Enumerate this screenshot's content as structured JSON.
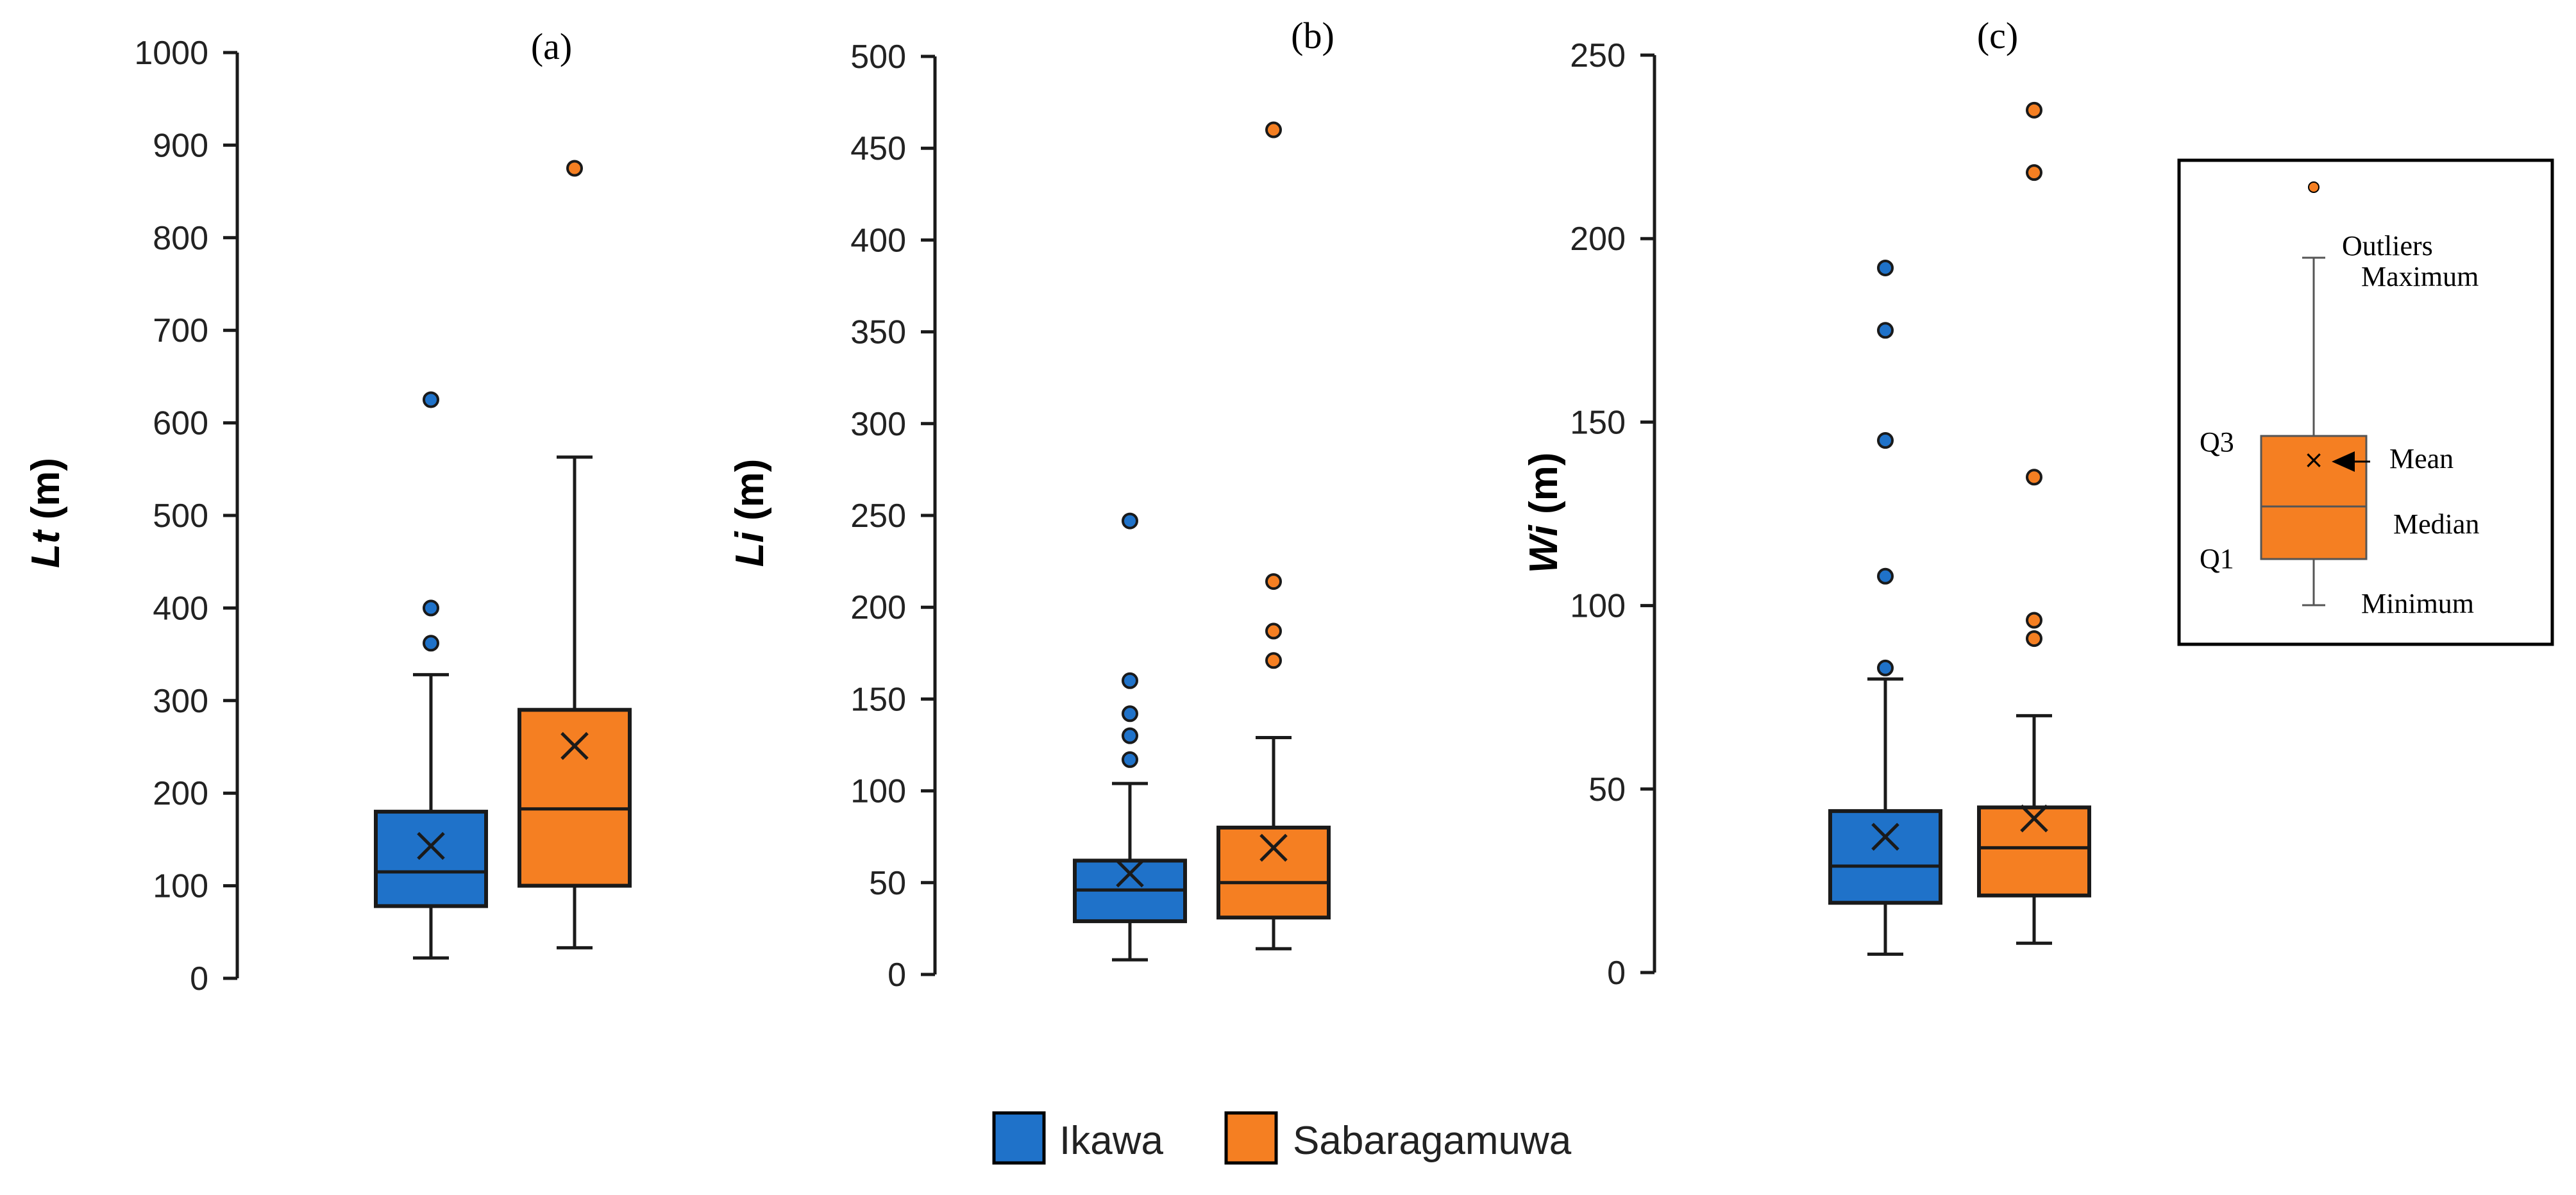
{
  "chart_data": [
    {
      "type": "boxplot",
      "panel_label": "(a)",
      "ylabel_var": "Lt",
      "ylabel_unit": " (m)",
      "ylim": [
        0,
        1000
      ],
      "yticks": [
        0,
        100,
        200,
        300,
        400,
        500,
        600,
        700,
        800,
        900,
        1000
      ],
      "series": [
        {
          "name": "Ikawa",
          "min": 22,
          "q1": 78,
          "median": 115,
          "q3": 180,
          "max": 328,
          "mean": 143,
          "outliers": [
            362,
            400,
            625
          ]
        },
        {
          "name": "Sabaragamuwa",
          "min": 33,
          "q1": 100,
          "median": 183,
          "q3": 290,
          "max": 563,
          "mean": 251,
          "outliers": [
            875
          ]
        }
      ]
    },
    {
      "type": "boxplot",
      "panel_label": "(b)",
      "ylabel_var": "Li",
      "ylabel_unit": " (m)",
      "ylim": [
        0,
        500
      ],
      "yticks": [
        0,
        50,
        100,
        150,
        200,
        250,
        300,
        350,
        400,
        450,
        500
      ],
      "series": [
        {
          "name": "Ikawa",
          "min": 8,
          "q1": 29,
          "median": 46,
          "q3": 62,
          "max": 104,
          "mean": 55,
          "outliers": [
            117,
            130,
            142,
            160,
            247
          ]
        },
        {
          "name": "Sabaragamuwa",
          "min": 14,
          "q1": 31,
          "median": 50,
          "q3": 80,
          "max": 129,
          "mean": 69,
          "outliers": [
            171,
            187,
            214,
            460
          ]
        }
      ]
    },
    {
      "type": "boxplot",
      "panel_label": "(c)",
      "ylabel_var": "Wi",
      "ylabel_unit": " (m)",
      "ylim": [
        0,
        250
      ],
      "yticks": [
        0,
        50,
        100,
        150,
        200,
        250
      ],
      "series": [
        {
          "name": "Ikawa",
          "min": 5,
          "q1": 19,
          "median": 29,
          "q3": 44,
          "max": 80,
          "mean": 37,
          "outliers": [
            83,
            108,
            145,
            175,
            192
          ]
        },
        {
          "name": "Sabaragamuwa",
          "min": 8,
          "q1": 21,
          "median": 34,
          "q3": 45,
          "max": 70,
          "mean": 42,
          "outliers": [
            91,
            96,
            135,
            218,
            235
          ]
        }
      ]
    }
  ],
  "legend": {
    "outliers": "Outliers",
    "maximum": "Maximum",
    "q3": "Q3",
    "mean": "Mean",
    "median": "Median",
    "q1": "Q1",
    "minimum": "Minimum"
  },
  "series_legend": [
    {
      "name": "Ikawa",
      "color": "#1f72c9"
    },
    {
      "name": "Sabaragamuwa",
      "color": "#f57f22"
    }
  ],
  "colors": {
    "Ikawa": "#1f72c9",
    "Sabaragamuwa": "#f57f22",
    "line": "#1a1a1a"
  }
}
